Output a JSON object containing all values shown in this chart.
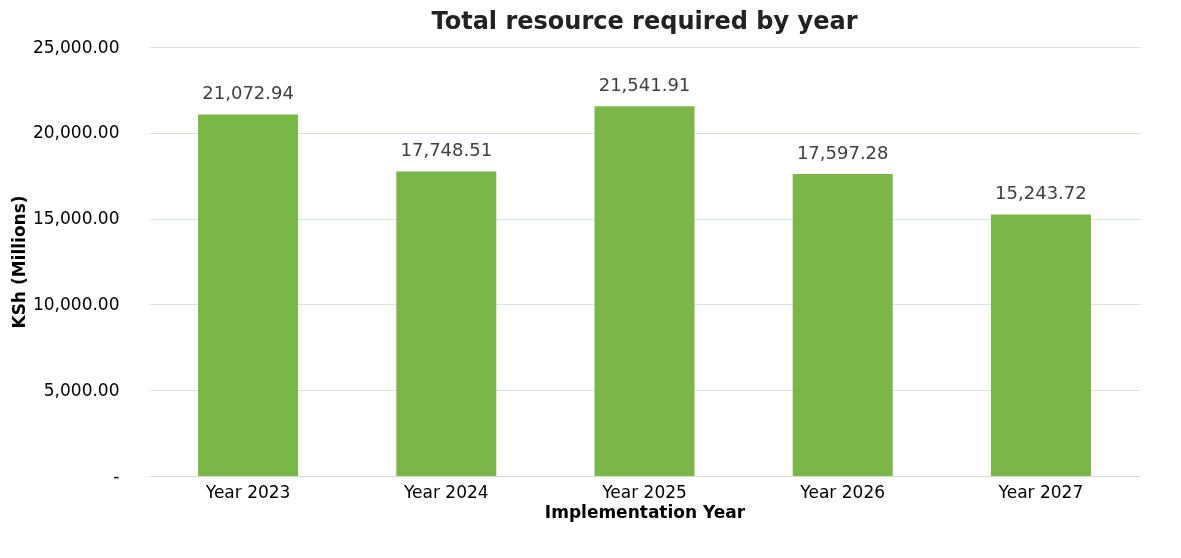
{
  "chart_data": {
    "type": "bar",
    "title": "Total resource required by year",
    "xlabel": "Implementation Year",
    "ylabel": "KSh (Millions)",
    "categories": [
      "Year 2023",
      "Year 2024",
      "Year 2025",
      "Year 2026",
      "Year 2027"
    ],
    "values": [
      21072.94,
      17748.51,
      21541.91,
      17597.28,
      15243.72
    ],
    "value_labels": [
      "21,072.94",
      "17,748.51",
      "21,541.91",
      "17,597.28",
      "15,243.72"
    ],
    "color": "#7ab648",
    "ylim": [
      0,
      25000
    ],
    "yticks": [
      {
        "value": 0,
        "label": "-"
      },
      {
        "value": 5000,
        "label": "5,000.00"
      },
      {
        "value": 10000,
        "label": "10,000.00"
      },
      {
        "value": 15000,
        "label": "15,000.00"
      },
      {
        "value": 20000,
        "label": "20,000.00"
      },
      {
        "value": 25000,
        "label": "25,000.00"
      }
    ],
    "grid": "y"
  }
}
